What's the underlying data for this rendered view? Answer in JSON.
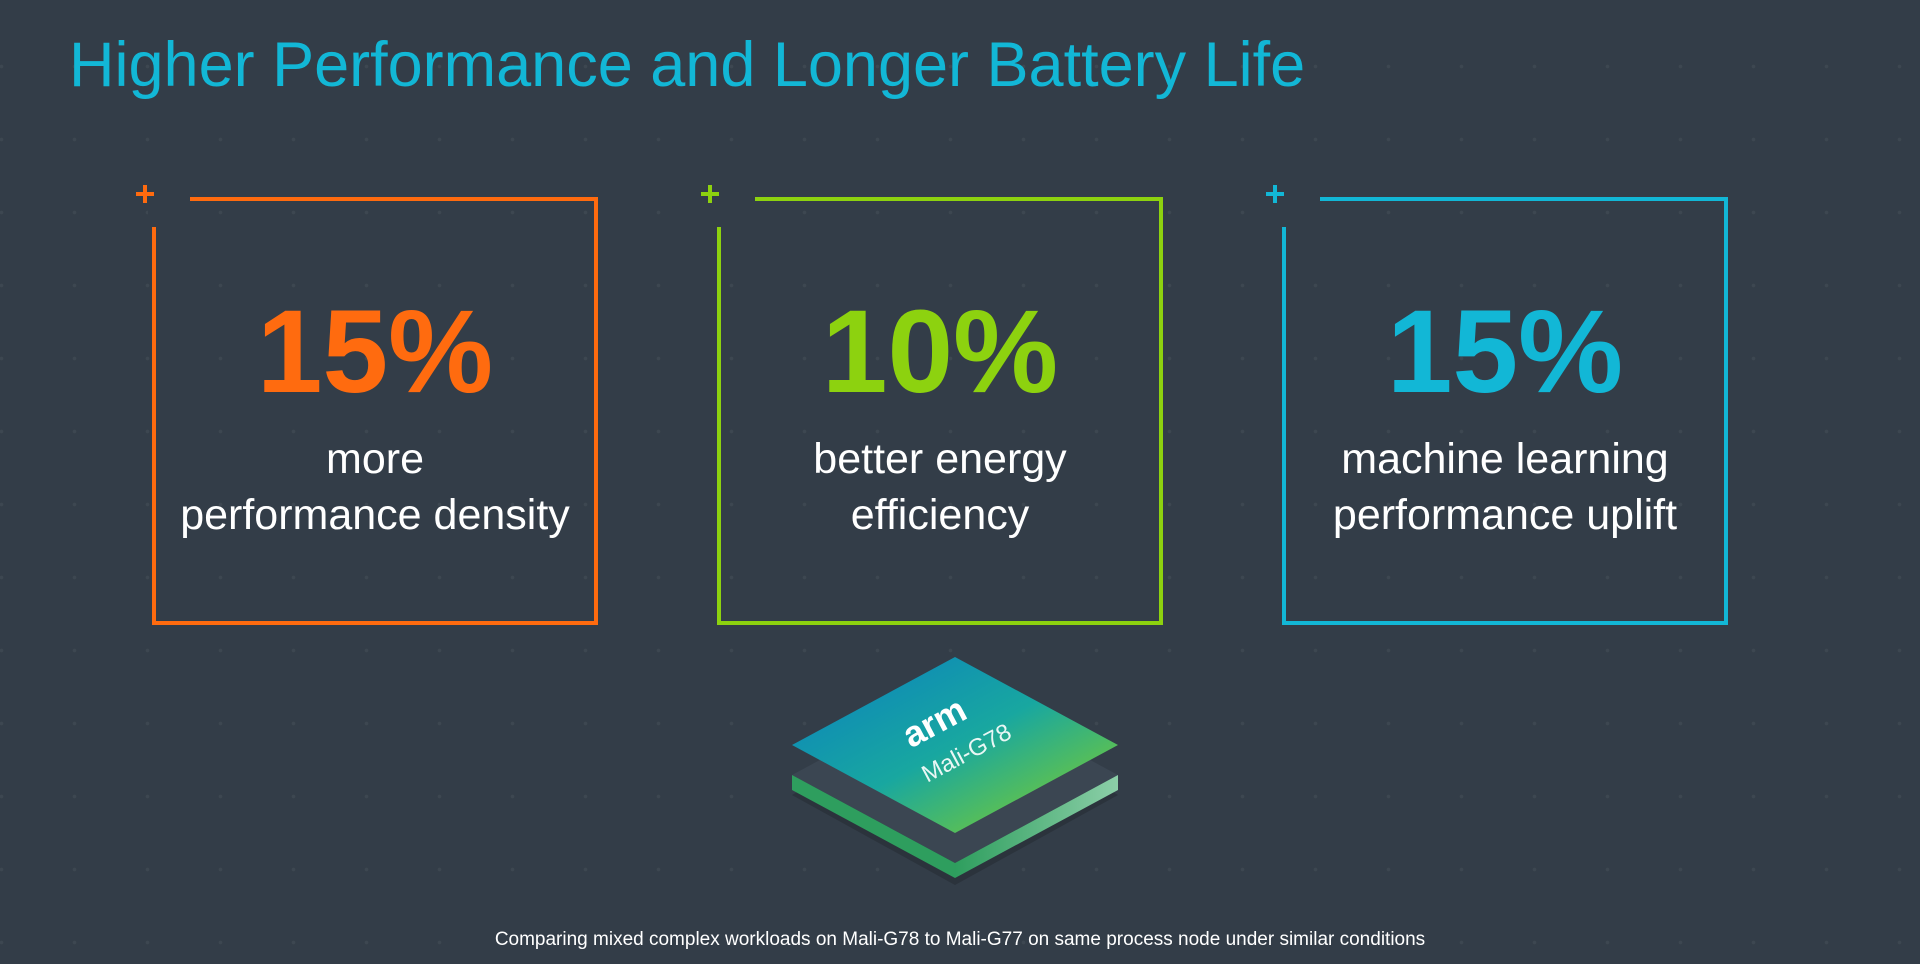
{
  "slide": {
    "title": "Higher Performance and Longer Battery Life",
    "footnote": "Comparing mixed complex workloads on Mali-G78 to Mali-G77 on same process node under similar conditions"
  },
  "cards": [
    {
      "value": "15%",
      "line1": "more",
      "line2": "performance density",
      "color": "#ff6b0f",
      "icon": "plus-icon"
    },
    {
      "value": "10%",
      "line1": "better energy",
      "line2": "efficiency",
      "color": "#8dd20f",
      "icon": "plus-icon"
    },
    {
      "value": "15%",
      "line1": "machine learning",
      "line2": "performance uplift",
      "color": "#12b7d6",
      "icon": "plus-icon"
    }
  ],
  "chip": {
    "brand": "arm",
    "model": "Mali-G78"
  },
  "colors": {
    "background": "#333d48",
    "title": "#12b7d6",
    "orange": "#ff6b0f",
    "green": "#8dd20f",
    "cyan": "#12b7d6"
  }
}
